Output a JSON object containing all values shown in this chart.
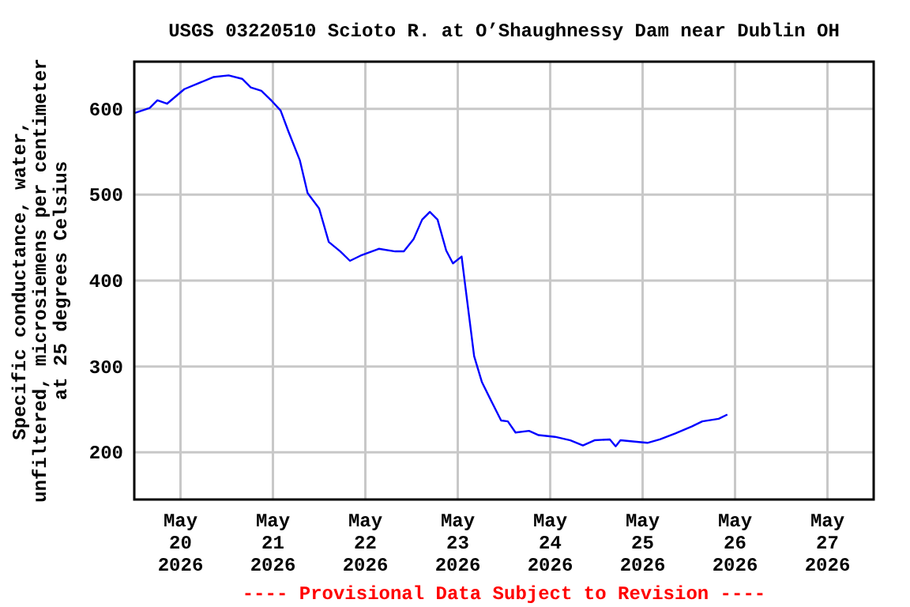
{
  "chart_data": {
    "type": "line",
    "title": "USGS 03220510 Scioto R. at O’Shaughnessy Dam near Dublin OH",
    "ylabel": "Specific conductance, water,\nunfiltered, microsiemens per centimeter\nat 25 degrees Celsius",
    "annotations": [
      "---- Provisional Data Subject to Revision ----"
    ],
    "x": [
      "2026-05-19T12:00",
      "2026-05-19T16:00",
      "2026-05-19T18:00",
      "2026-05-19T20:30",
      "2026-05-20T01:00",
      "2026-05-20T08:30",
      "2026-05-20T12:30",
      "2026-05-20T16:00",
      "2026-05-20T18:15",
      "2026-05-20T21:00",
      "2026-05-20T23:45",
      "2026-05-21T02:00",
      "2026-05-21T04:00",
      "2026-05-21T07:00",
      "2026-05-21T09:00",
      "2026-05-21T12:00",
      "2026-05-21T14:30",
      "2026-05-21T17:30",
      "2026-05-21T20:00",
      "2026-05-21T22:45",
      "2026-05-22T03:30",
      "2026-05-22T07:45",
      "2026-05-22T10:00",
      "2026-05-22T12:30",
      "2026-05-22T14:45",
      "2026-05-22T16:45",
      "2026-05-22T18:45",
      "2026-05-22T21:00",
      "2026-05-22T22:45",
      "2026-05-23T01:00",
      "2026-05-23T02:00",
      "2026-05-23T04:15",
      "2026-05-23T06:15",
      "2026-05-23T09:00",
      "2026-05-23T11:15",
      "2026-05-23T13:00",
      "2026-05-23T15:00",
      "2026-05-23T18:30",
      "2026-05-23T21:00",
      "2026-05-24T01:15",
      "2026-05-24T05:15",
      "2026-05-24T08:30",
      "2026-05-24T11:30",
      "2026-05-24T15:30",
      "2026-05-24T17:00",
      "2026-05-24T18:15",
      "2026-05-24T23:00",
      "2026-05-25T01:15",
      "2026-05-25T04:30",
      "2026-05-25T08:30",
      "2026-05-25T12:45",
      "2026-05-25T15:30",
      "2026-05-25T19:45",
      "2026-05-25T22:00"
    ],
    "series": [
      {
        "color": "#0000ff",
        "values": [
          595,
          601,
          610,
          606,
          623,
          637,
          639,
          635,
          625,
          621,
          609,
          598,
          574,
          540,
          502,
          484,
          445,
          434,
          423,
          429,
          437,
          434,
          434,
          448,
          471,
          480,
          471,
          435,
          420,
          428,
          392,
          312,
          282,
          257,
          237,
          236,
          223,
          225,
          220,
          218,
          214,
          208,
          214,
          215,
          207,
          214,
          212,
          211,
          215,
          222,
          230,
          236,
          239,
          244
        ]
      }
    ],
    "xlim": [
      "2026-05-19T12:00",
      "2026-05-27T12:00"
    ],
    "xticks": [
      {
        "value": "2026-05-20",
        "label": "May\n20\n2026"
      },
      {
        "value": "2026-05-21",
        "label": "May\n21\n2026"
      },
      {
        "value": "2026-05-22",
        "label": "May\n22\n2026"
      },
      {
        "value": "2026-05-23",
        "label": "May\n23\n2026"
      },
      {
        "value": "2026-05-24",
        "label": "May\n24\n2026"
      },
      {
        "value": "2026-05-25",
        "label": "May\n25\n2026"
      },
      {
        "value": "2026-05-26",
        "label": "May\n26\n2026"
      },
      {
        "value": "2026-05-27",
        "label": "May\n27\n2026"
      }
    ],
    "ylim": [
      145,
      655
    ],
    "yticks": [
      200,
      300,
      400,
      500,
      600
    ],
    "grid": true,
    "marker": "none",
    "line_style": "solid"
  }
}
